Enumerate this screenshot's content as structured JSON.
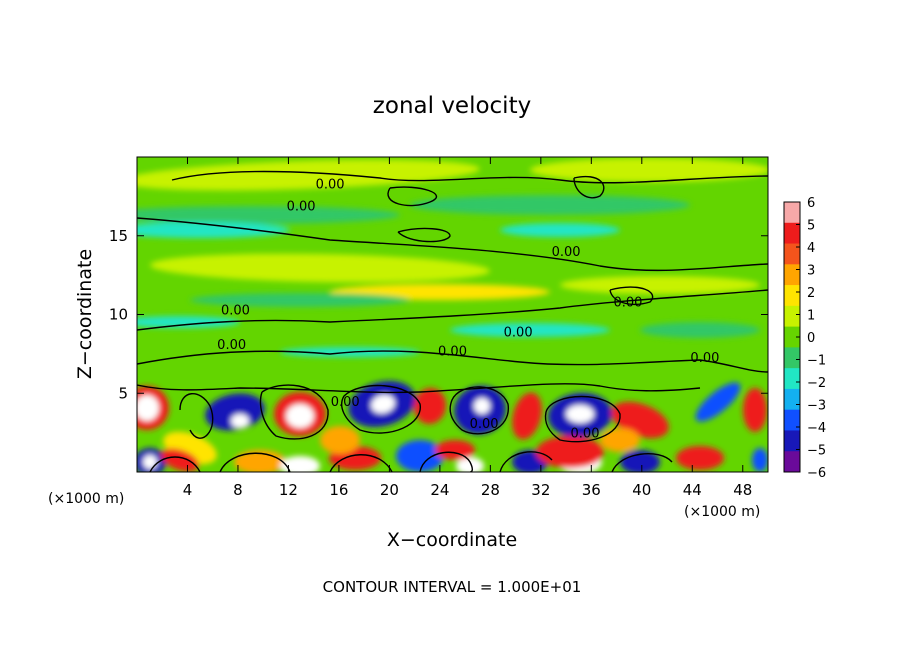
{
  "chart_data": {
    "type": "heatmap",
    "title": "zonal velocity",
    "xlabel": "X−coordinate",
    "ylabel": "Z−coordinate",
    "x_unit_left": "(×1000 m)",
    "x_unit_right": "(×1000 m)",
    "xlim": [
      0,
      50
    ],
    "ylim": [
      0,
      20
    ],
    "x_ticks": [
      4,
      8,
      12,
      16,
      20,
      24,
      28,
      32,
      36,
      40,
      44,
      48
    ],
    "y_ticks": [
      5,
      10,
      15
    ],
    "x_tick_labels": [
      "4",
      "8",
      "12",
      "16",
      "20",
      "24",
      "28",
      "32",
      "36",
      "40",
      "44",
      "48"
    ],
    "y_tick_labels": [
      "5",
      "10",
      "15"
    ],
    "colorbar": {
      "levels": [
        6,
        5,
        4,
        3,
        2,
        1,
        0,
        -1,
        -2,
        -3,
        -4,
        -5,
        -6
      ],
      "labels": [
        "6",
        "5",
        "4",
        "3",
        "2",
        "1",
        "0",
        "−1",
        "−2",
        "−3",
        "−4",
        "−5",
        "−6"
      ],
      "colors": [
        "#f7a8a8",
        "#ee1c1c",
        "#f4541c",
        "#ffa500",
        "#ffe400",
        "#c7f200",
        "#66d400",
        "#33c766",
        "#21e6c4",
        "#13b0f0",
        "#1050ff",
        "#1818b8",
        "#6a0a9a"
      ]
    },
    "contour_level_label": "0.00",
    "contour_labels": [
      {
        "x": 15.3,
        "y": 18.0
      },
      {
        "x": 13.0,
        "y": 16.6
      },
      {
        "x": 34.0,
        "y": 13.7
      },
      {
        "x": 38.9,
        "y": 10.5
      },
      {
        "x": 7.8,
        "y": 10.0
      },
      {
        "x": 30.2,
        "y": 8.6
      },
      {
        "x": 7.5,
        "y": 7.8
      },
      {
        "x": 25.0,
        "y": 7.4
      },
      {
        "x": 45.0,
        "y": 7.0
      },
      {
        "x": 16.5,
        "y": 4.2
      },
      {
        "x": 27.5,
        "y": 2.8
      },
      {
        "x": 35.5,
        "y": 2.2
      }
    ],
    "grid": false,
    "footnote": "CONTOUR INTERVAL = 1.000E+01"
  }
}
